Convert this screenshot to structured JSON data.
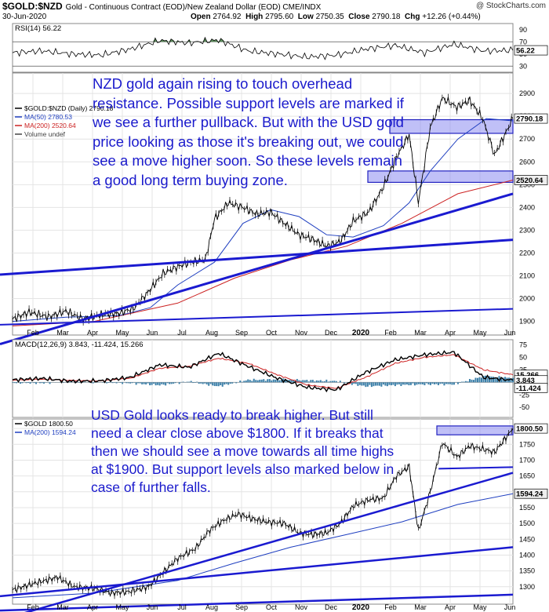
{
  "header": {
    "symbol": "$GOLD:$NZD",
    "description": "Gold - Continuous Contract (EOD)/New Zealand Dollar (EOD) CME/INDX",
    "brand": "@ StockCharts.com",
    "date": "30-Jun-2020",
    "open_label": "Open",
    "open": "2764.92",
    "high_label": "High",
    "high": "2795.60",
    "low_label": "Low",
    "low": "2750.35",
    "close_label": "Close",
    "close": "2790.18",
    "chg_label": "Chg",
    "chg": "+12.26 (+0.44%)"
  },
  "annotations": {
    "nzd_note": "NZD gold again rising to touch overhead resistance. Possible support levels are marked if we see a further pullback. But with the USD gold price looking as those it's breaking out, we could see a move higher soon. So these levels remain a good long term buying zone.",
    "usd_note": "USD Gold looks ready to break higher. But still need a clear close above $1800. If it breaks that then we should see a move towards all time highs at $1900. But support levels also marked below in case of further falls."
  },
  "colors": {
    "price": "#000000",
    "ma50": "#1f3fc0",
    "ma200": "#cc2222",
    "trendline": "#1a1ad0",
    "zone_fill": "#8c8cf0",
    "zone_stroke": "#2222c0",
    "rsi_fill": "#5e8f5e",
    "histogram": "#3b7fa8",
    "macd_signal": "#cc2222"
  },
  "chart_data": [
    {
      "type": "line",
      "title": "RSI(14) 56.22",
      "value_label": "56.22",
      "ticks": [
        "90",
        "70",
        "50",
        "30"
      ],
      "ylim": [
        20,
        100
      ],
      "reference_lines": [
        70,
        30
      ],
      "x": [
        "2019-01",
        "2019-02",
        "2019-03",
        "2019-04",
        "2019-05",
        "2019-06",
        "2019-07",
        "2019-08",
        "2019-09",
        "2019-10",
        "2019-11",
        "2019-12",
        "2020-01",
        "2020-02",
        "2020-03",
        "2020-04",
        "2020-05",
        "2020-06"
      ],
      "values": [
        52,
        55,
        50,
        48,
        58,
        72,
        68,
        73,
        55,
        50,
        45,
        48,
        58,
        64,
        52,
        66,
        55,
        56
      ]
    },
    {
      "type": "line",
      "legend": [
        "$GOLD:$NZD (Daily) 2790.18",
        "MA(50) 2780.53",
        "MA(200) 2520.64",
        "Volume undef"
      ],
      "y_ticks": [
        "2900",
        "2800",
        "2700",
        "2600",
        "2500",
        "2400",
        "2300",
        "2200",
        "2100",
        "2000",
        "1900"
      ],
      "ylim": [
        1840,
        2990
      ],
      "x_ticks": [
        "Feb",
        "Mar",
        "Apr",
        "May",
        "Jun",
        "Jul",
        "Aug",
        "Sep",
        "Oct",
        "Nov",
        "Dec",
        "2020",
        "Feb",
        "Mar",
        "Apr",
        "May",
        "Jun"
      ],
      "price_label": "2790.18",
      "ma200_label": "2520.64",
      "series": [
        {
          "name": "$GOLD:$NZD",
          "x": [
            "2019-01-02",
            "2019-01-20",
            "2019-02-10",
            "2019-03-01",
            "2019-03-20",
            "2019-04-10",
            "2019-04-28",
            "2019-05-15",
            "2019-06-01",
            "2019-06-15",
            "2019-07-01",
            "2019-07-15",
            "2019-07-31",
            "2019-08-10",
            "2019-08-25",
            "2019-09-10",
            "2019-09-25",
            "2019-10-10",
            "2019-10-25",
            "2019-11-10",
            "2019-11-25",
            "2019-12-10",
            "2019-12-25",
            "2020-01-08",
            "2020-01-25",
            "2020-02-10",
            "2020-02-24",
            "2020-03-09",
            "2020-03-19",
            "2020-04-01",
            "2020-04-14",
            "2020-04-30",
            "2020-05-14",
            "2020-05-28",
            "2020-06-10",
            "2020-06-30"
          ],
          "values": [
            1910,
            1940,
            1920,
            1945,
            1910,
            1930,
            1935,
            1960,
            2040,
            2110,
            2140,
            2160,
            2170,
            2350,
            2420,
            2400,
            2370,
            2380,
            2330,
            2280,
            2260,
            2230,
            2250,
            2340,
            2380,
            2490,
            2620,
            2720,
            2420,
            2750,
            2880,
            2840,
            2870,
            2790,
            2630,
            2790
          ]
        },
        {
          "name": "MA(50)",
          "x": [
            "2019-01-02",
            "2019-03-01",
            "2019-04-28",
            "2019-06-01",
            "2019-07-01",
            "2019-08-10",
            "2019-09-10",
            "2019-10-10",
            "2019-11-10",
            "2019-12-10",
            "2020-01-08",
            "2020-02-10",
            "2020-03-09",
            "2020-04-01",
            "2020-05-01",
            "2020-06-01",
            "2020-06-30"
          ],
          "values": [
            1900,
            1918,
            1925,
            1960,
            2060,
            2160,
            2330,
            2390,
            2360,
            2280,
            2270,
            2320,
            2420,
            2560,
            2700,
            2790,
            2780
          ]
        },
        {
          "name": "MA(200)",
          "x": [
            "2019-01-02",
            "2019-04-01",
            "2019-07-01",
            "2019-09-01",
            "2019-11-01",
            "2020-01-01",
            "2020-03-01",
            "2020-05-01",
            "2020-06-30"
          ],
          "values": [
            1880,
            1900,
            1980,
            2090,
            2170,
            2230,
            2330,
            2460,
            2520
          ]
        }
      ],
      "trendlines": [
        {
          "x": [
            "2019-01-01",
            "2020-06-30"
          ],
          "values": [
            2105,
            2258
          ]
        },
        {
          "x": [
            "2019-01-01",
            "2020-06-30"
          ],
          "values": [
            1800,
            2460
          ]
        },
        {
          "x": [
            "2019-01-01",
            "2020-06-30"
          ],
          "values": [
            1885,
            1955
          ]
        }
      ],
      "zones": [
        {
          "from": 2725,
          "to": 2785
        },
        {
          "from": 2510,
          "to": 2560
        }
      ]
    },
    {
      "type": "line",
      "title": "MACD(12,26,9) 3.843, -11.424, 15.266",
      "y_ticks": [
        "75",
        "50",
        "25",
        "0",
        "-25",
        "-50"
      ],
      "ylim": [
        -70,
        85
      ],
      "labels": [
        "15.266",
        "3.843",
        "-11.424"
      ],
      "x": [
        "2019-01",
        "2019-02",
        "2019-03",
        "2019-04",
        "2019-05",
        "2019-06",
        "2019-07",
        "2019-08",
        "2019-09",
        "2019-10",
        "2019-11",
        "2019-12",
        "2020-01",
        "2020-02",
        "2020-03",
        "2020-04",
        "2020-05",
        "2020-06"
      ],
      "series": [
        {
          "name": "MACD",
          "values": [
            5,
            8,
            2,
            3,
            10,
            35,
            30,
            58,
            32,
            8,
            -10,
            -15,
            20,
            45,
            55,
            60,
            10,
            4
          ]
        },
        {
          "name": "Signal",
          "values": [
            4,
            6,
            4,
            3,
            8,
            28,
            32,
            48,
            38,
            15,
            -5,
            -12,
            10,
            38,
            50,
            55,
            25,
            15
          ]
        }
      ]
    },
    {
      "type": "line",
      "legend": [
        "$GOLD 1800.50",
        "MA(200) 1594.24"
      ],
      "y_ticks": [
        "1800",
        "1750",
        "1700",
        "1650",
        "1600",
        "1550",
        "1500",
        "1450",
        "1400",
        "1350",
        "1300"
      ],
      "ylim": [
        1245,
        1830
      ],
      "x_ticks": [
        "Feb",
        "Mar",
        "Apr",
        "May",
        "Jun",
        "Jul",
        "Aug",
        "Sep",
        "Oct",
        "Nov",
        "Dec",
        "2020",
        "Feb",
        "Mar",
        "Apr",
        "May",
        "Jun"
      ],
      "price_label": "1800.50",
      "ma200_label": "1594.24",
      "series": [
        {
          "name": "$GOLD",
          "x": [
            "2019-01-02",
            "2019-01-25",
            "2019-02-20",
            "2019-03-10",
            "2019-04-01",
            "2019-04-20",
            "2019-05-10",
            "2019-05-30",
            "2019-06-15",
            "2019-07-01",
            "2019-07-20",
            "2019-08-05",
            "2019-08-20",
            "2019-09-05",
            "2019-09-20",
            "2019-10-05",
            "2019-10-25",
            "2019-11-10",
            "2019-11-25",
            "2019-12-10",
            "2019-12-25",
            "2020-01-08",
            "2020-01-25",
            "2020-02-10",
            "2020-02-24",
            "2020-03-09",
            "2020-03-19",
            "2020-04-01",
            "2020-04-14",
            "2020-04-30",
            "2020-05-14",
            "2020-05-28",
            "2020-06-10",
            "2020-06-30"
          ],
          "values": [
            1290,
            1310,
            1330,
            1300,
            1295,
            1280,
            1285,
            1300,
            1345,
            1390,
            1420,
            1480,
            1510,
            1530,
            1515,
            1505,
            1500,
            1470,
            1465,
            1470,
            1500,
            1555,
            1575,
            1580,
            1650,
            1680,
            1475,
            1600,
            1755,
            1710,
            1745,
            1735,
            1725,
            1800
          ]
        },
        {
          "name": "MA(200)",
          "x": [
            "2019-01-02",
            "2019-04-01",
            "2019-07-01",
            "2019-09-01",
            "2019-11-01",
            "2020-01-01",
            "2020-03-01",
            "2020-05-01",
            "2020-06-30"
          ],
          "values": [
            1265,
            1280,
            1320,
            1375,
            1425,
            1465,
            1505,
            1560,
            1594
          ]
        }
      ],
      "trendlines": [
        {
          "x": [
            "2019-01-01",
            "2020-06-30"
          ],
          "values": [
            1195,
            1660
          ]
        },
        {
          "x": [
            "2019-01-01",
            "2020-06-30"
          ],
          "values": [
            1270,
            1425
          ]
        },
        {
          "x": [
            "2019-01-01",
            "2020-06-30"
          ],
          "values": [
            1225,
            1275
          ]
        },
        {
          "x": [
            "2020-04-10",
            "2020-06-30"
          ],
          "values": [
            1673,
            1678
          ]
        }
      ],
      "zones": [
        {
          "from": 1780,
          "to": 1808
        }
      ]
    }
  ]
}
